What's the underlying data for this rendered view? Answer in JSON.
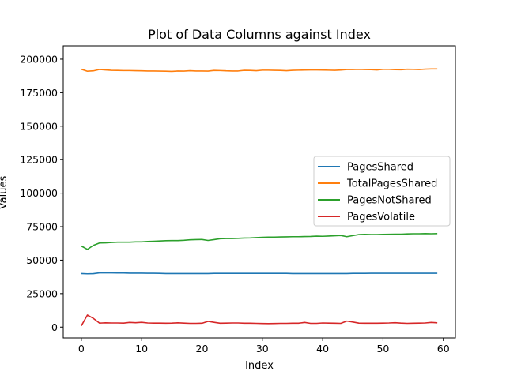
{
  "chart_data": {
    "type": "line",
    "title": "Plot of Data Columns against Index",
    "xlabel": "Index",
    "ylabel": "Values",
    "xlim": [
      -3.0,
      62.0
    ],
    "ylim": [
      -8100,
      210000
    ],
    "xticks": [
      0,
      10,
      20,
      30,
      40,
      50,
      60
    ],
    "yticks": [
      0,
      25000,
      50000,
      75000,
      100000,
      125000,
      150000,
      175000,
      200000
    ],
    "grid": false,
    "legend_position": "center-right",
    "series": [
      {
        "name": "PagesShared",
        "color": "#1f77b4",
        "values": [
          40000,
          39800,
          39900,
          40500,
          40500,
          40500,
          40400,
          40400,
          40300,
          40300,
          40300,
          40200,
          40200,
          40100,
          40000,
          40000,
          40000,
          40000,
          40000,
          40000,
          40000,
          40000,
          40100,
          40100,
          40100,
          40100,
          40100,
          40100,
          40100,
          40100,
          40100,
          40100,
          40100,
          40100,
          40100,
          40000,
          40000,
          40000,
          40000,
          40000,
          40000,
          40000,
          40000,
          40000,
          40000,
          40100,
          40100,
          40100,
          40200,
          40200,
          40200,
          40200,
          40200,
          40200,
          40200,
          40200,
          40200,
          40200,
          40200,
          40200
        ]
      },
      {
        "name": "TotalPagesShared",
        "color": "#ff7f0e",
        "values": [
          192500,
          191000,
          191300,
          192300,
          192000,
          191700,
          191600,
          191500,
          191500,
          191400,
          191300,
          191200,
          191200,
          191100,
          191000,
          190900,
          191200,
          191100,
          191400,
          191200,
          191200,
          191100,
          191600,
          191500,
          191300,
          191200,
          191200,
          191700,
          191600,
          191400,
          191800,
          191800,
          191700,
          191600,
          191400,
          191700,
          191800,
          191900,
          192000,
          192000,
          191900,
          191800,
          191700,
          191900,
          192300,
          192300,
          192400,
          192300,
          192200,
          192000,
          192400,
          192400,
          192200,
          192100,
          192500,
          192400,
          192300,
          192600,
          192700,
          192700
        ]
      },
      {
        "name": "PagesNotShared",
        "color": "#2ca02c",
        "values": [
          60500,
          58000,
          61000,
          62800,
          62900,
          63200,
          63400,
          63400,
          63400,
          63600,
          63600,
          63900,
          64100,
          64300,
          64500,
          64600,
          64600,
          64800,
          65200,
          65300,
          65400,
          64700,
          65300,
          66000,
          66100,
          66100,
          66300,
          66500,
          66600,
          66800,
          67000,
          67200,
          67200,
          67300,
          67400,
          67500,
          67500,
          67600,
          67700,
          67900,
          67800,
          68000,
          68200,
          68400,
          67500,
          68300,
          69100,
          69200,
          69100,
          69100,
          69200,
          69300,
          69400,
          69400,
          69600,
          69700,
          69700,
          69800,
          69700,
          69800
        ]
      },
      {
        "name": "PagesVolatile",
        "color": "#d62728",
        "values": [
          1000,
          9000,
          6500,
          3000,
          3200,
          3100,
          3100,
          3000,
          3500,
          3300,
          3600,
          3100,
          3000,
          3000,
          2900,
          3000,
          3200,
          3000,
          2800,
          2800,
          2900,
          4300,
          3600,
          2900,
          3000,
          3100,
          3100,
          2900,
          2900,
          2800,
          2700,
          2600,
          2700,
          2800,
          2800,
          2900,
          2900,
          3500,
          2800,
          2800,
          3100,
          3000,
          2900,
          2800,
          4500,
          3800,
          3000,
          2900,
          2900,
          2900,
          3000,
          3100,
          3300,
          3000,
          2800,
          2900,
          3000,
          3100,
          3500,
          3200
        ]
      }
    ]
  }
}
